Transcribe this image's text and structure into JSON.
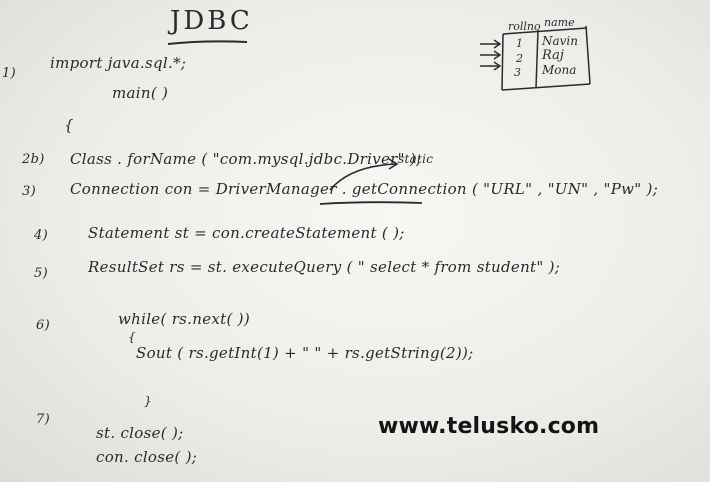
{
  "title": "JDBC",
  "steps": [
    {
      "num": "1)",
      "code": "import  java.sql.*;"
    },
    {
      "num": "",
      "code": "main( )"
    },
    {
      "num": "",
      "code": "{"
    },
    {
      "num": "2b)",
      "code": "Class . forName ( \"com.mysql.jdbc.Driver\" );"
    },
    {
      "num": "3)",
      "code": "Connection  con = DriverManager . getConnection ( \"URL\" ,  \"UN\" ,   \"Pw\" );"
    },
    {
      "num": "4)",
      "code": "Statement  st  =  con.createStatement ( );"
    },
    {
      "num": "5)",
      "code": "ResultSet  rs  =  st. executeQuery ( \" select  *  from student\" );"
    },
    {
      "num": "6)",
      "code": "while( rs.next( ))"
    },
    {
      "num": "",
      "code": "{"
    },
    {
      "num": "",
      "code": "Sout ( rs.getInt(1) +  \"       \"  + rs.getString(2));"
    },
    {
      "num": "",
      "code": "}"
    },
    {
      "num": "7)",
      "code": "st. close( );"
    },
    {
      "num": "",
      "code": "con. close( );"
    }
  ],
  "annotation": "static",
  "table": {
    "headers": [
      "rollno",
      "name"
    ],
    "rows": [
      [
        "1",
        "Navin"
      ],
      [
        "2",
        "Raj"
      ],
      [
        "3",
        "Mona"
      ]
    ]
  },
  "watermark": "www.telusko.com"
}
